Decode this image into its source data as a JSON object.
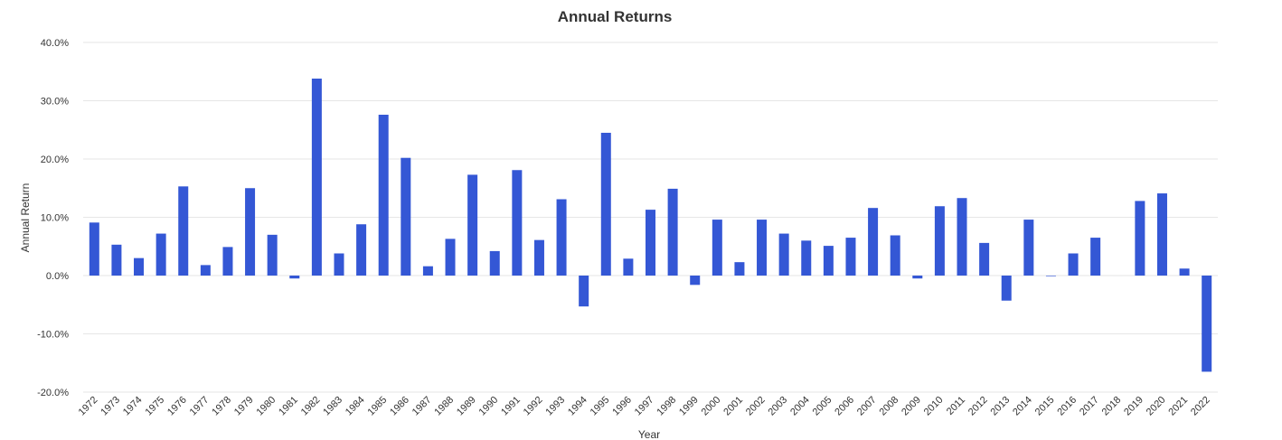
{
  "chart_data": {
    "type": "bar",
    "title": "Annual Returns",
    "xlabel": "Year",
    "ylabel": "Annual Return",
    "ylim": [
      -20,
      40
    ],
    "yticks": [
      40,
      30,
      20,
      10,
      0,
      -10,
      -20
    ],
    "ytick_labels": [
      "40.0%",
      "30.0%",
      "20.0%",
      "10.0%",
      "0.0%",
      "-10.0%",
      "-20.0%"
    ],
    "grid": true,
    "legend": "none",
    "bar_color": "#3457d5",
    "categories": [
      "1972",
      "1973",
      "1974",
      "1975",
      "1976",
      "1977",
      "1978",
      "1979",
      "1980",
      "1981",
      "1982",
      "1983",
      "1984",
      "1985",
      "1986",
      "1987",
      "1988",
      "1989",
      "1990",
      "1991",
      "1992",
      "1993",
      "1994",
      "1995",
      "1996",
      "1997",
      "1998",
      "1999",
      "2000",
      "2001",
      "2002",
      "2003",
      "2004",
      "2005",
      "2006",
      "2007",
      "2008",
      "2009",
      "2010",
      "2011",
      "2012",
      "2013",
      "2014",
      "2015",
      "2016",
      "2017",
      "2018",
      "2019",
      "2020",
      "2021",
      "2022"
    ],
    "values": [
      9.1,
      5.3,
      3.0,
      7.2,
      15.3,
      1.8,
      4.9,
      15.0,
      7.0,
      -0.5,
      33.8,
      3.8,
      8.8,
      27.6,
      20.2,
      1.6,
      6.3,
      17.3,
      4.2,
      18.1,
      6.1,
      13.1,
      -5.3,
      24.5,
      2.9,
      11.3,
      14.9,
      -1.6,
      9.6,
      2.3,
      9.6,
      7.2,
      6.0,
      5.1,
      6.5,
      11.6,
      6.9,
      -0.5,
      11.9,
      13.3,
      5.6,
      -4.3,
      9.6,
      -0.1,
      3.8,
      6.5,
      0.0,
      12.8,
      14.1,
      1.2,
      -16.5
    ]
  }
}
